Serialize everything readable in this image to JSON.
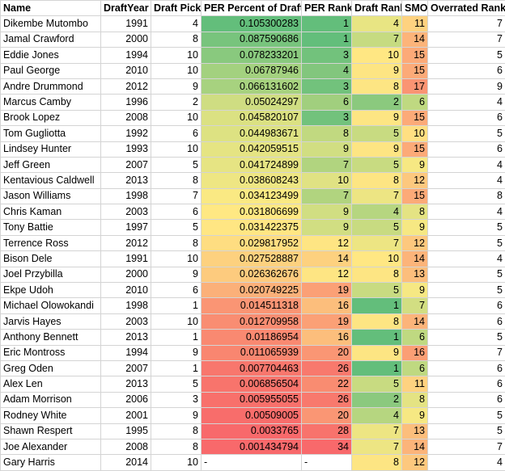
{
  "columns": [
    "Name",
    "DraftYear",
    "Draft Pick",
    "PER Percent of Draft",
    "PER Rank",
    "Draft Rank",
    "SMO",
    "Overrated Rank"
  ],
  "rows": [
    {
      "name": "Dikembe Mutombo",
      "year": "1991",
      "pick": "4",
      "per": "0.105300283",
      "per_rank": "1",
      "draft_rank": "4",
      "smo": "11",
      "over": "7",
      "per_color": "#63be7b",
      "per_rank_color": "#63be7b",
      "draft_rank_color": "#e8e583",
      "smo_color": "#fed280"
    },
    {
      "name": "Jamal Crawford",
      "year": "2000",
      "pick": "8",
      "per": "0.087590686",
      "per_rank": "1",
      "draft_rank": "7",
      "smo": "14",
      "over": "7",
      "per_color": "#78c47d",
      "per_rank_color": "#63be7b",
      "draft_rank_color": "#c6db81",
      "smo_color": "#fcb47a"
    },
    {
      "name": "Eddie Jones",
      "year": "1994",
      "pick": "10",
      "per": "0.078233201",
      "per_rank": "3",
      "draft_rank": "10",
      "smo": "15",
      "over": "5",
      "per_color": "#89c97e",
      "per_rank_color": "#72c27c",
      "draft_rank_color": "#ffe783",
      "smo_color": "#fcaa78"
    },
    {
      "name": "Paul George",
      "year": "2010",
      "pick": "10",
      "per": "0.06787946",
      "per_rank": "4",
      "draft_rank": "9",
      "smo": "15",
      "over": "6",
      "per_color": "#a3d17f",
      "per_rank_color": "#82c67d",
      "draft_rank_color": "#fde583",
      "smo_color": "#fcaa78"
    },
    {
      "name": "Andre Drummond",
      "year": "2012",
      "pick": "9",
      "per": "0.066131602",
      "per_rank": "3",
      "draft_rank": "8",
      "smo": "17",
      "over": "9",
      "per_color": "#a7d27f",
      "per_rank_color": "#72c27c",
      "draft_rank_color": "#fde583",
      "smo_color": "#fa9473"
    },
    {
      "name": "Marcus Camby",
      "year": "1996",
      "pick": "2",
      "per": "0.05024297",
      "per_rank": "6",
      "draft_rank": "2",
      "smo": "6",
      "over": "4",
      "per_color": "#cfdd82",
      "per_rank_color": "#a1cf7e",
      "draft_rank_color": "#8bc97e",
      "smo_color": "#bfd981"
    },
    {
      "name": "Brook Lopez",
      "year": "2008",
      "pick": "10",
      "per": "0.045820107",
      "per_rank": "3",
      "draft_rank": "9",
      "smo": "15",
      "over": "6",
      "per_color": "#dbe182",
      "per_rank_color": "#72c27c",
      "draft_rank_color": "#fde583",
      "smo_color": "#fcaa78"
    },
    {
      "name": "Tom Gugliotta",
      "year": "1992",
      "pick": "6",
      "per": "0.044983671",
      "per_rank": "8",
      "draft_rank": "5",
      "smo": "10",
      "over": "5",
      "per_color": "#dde282",
      "per_rank_color": "#c1d980",
      "draft_rank_color": "#c8db81",
      "smo_color": "#ffdf82"
    },
    {
      "name": "Lindsey Hunter",
      "year": "1993",
      "pick": "10",
      "per": "0.042059515",
      "per_rank": "9",
      "draft_rank": "9",
      "smo": "15",
      "over": "6",
      "per_color": "#e5e483",
      "per_rank_color": "#d1de82",
      "draft_rank_color": "#fde583",
      "smo_color": "#fcaa78"
    },
    {
      "name": "Jeff Green",
      "year": "2007",
      "pick": "5",
      "per": "0.041724899",
      "per_rank": "7",
      "draft_rank": "5",
      "smo": "9",
      "over": "4",
      "per_color": "#e6e483",
      "per_rank_color": "#b1d47f",
      "draft_rank_color": "#c8db81",
      "smo_color": "#f6e883"
    },
    {
      "name": "Kentavious Caldwell",
      "year": "2013",
      "pick": "8",
      "per": "0.038608243",
      "per_rank": "10",
      "draft_rank": "8",
      "smo": "12",
      "over": "4",
      "per_color": "#eee683",
      "per_rank_color": "#e0e283",
      "draft_rank_color": "#fde583",
      "smo_color": "#fdc87e"
    },
    {
      "name": "Jason Williams",
      "year": "1998",
      "pick": "7",
      "per": "0.034123499",
      "per_rank": "7",
      "draft_rank": "7",
      "smo": "15",
      "over": "8",
      "per_color": "#fae983",
      "per_rank_color": "#b1d47f",
      "draft_rank_color": "#ede583",
      "smo_color": "#fcaa78"
    },
    {
      "name": "Chris Kaman",
      "year": "2003",
      "pick": "6",
      "per": "0.031806699",
      "per_rank": "9",
      "draft_rank": "4",
      "smo": "8",
      "over": "4",
      "per_color": "#ffe883",
      "per_rank_color": "#d1de82",
      "draft_rank_color": "#b6d680",
      "smo_color": "#e4e383"
    },
    {
      "name": "Tony Battie",
      "year": "1997",
      "pick": "5",
      "per": "0.031422375",
      "per_rank": "9",
      "draft_rank": "5",
      "smo": "9",
      "over": "5",
      "per_color": "#ffe683",
      "per_rank_color": "#d1de82",
      "draft_rank_color": "#c8db81",
      "smo_color": "#f6e883"
    },
    {
      "name": "Terrence Ross",
      "year": "2012",
      "pick": "8",
      "per": "0.029817952",
      "per_rank": "12",
      "draft_rank": "7",
      "smo": "12",
      "over": "5",
      "per_color": "#fedd81",
      "per_rank_color": "#fee583",
      "draft_rank_color": "#ede583",
      "smo_color": "#fdc87e"
    },
    {
      "name": "Bison Dele",
      "year": "1991",
      "pick": "10",
      "per": "0.027528887",
      "per_rank": "14",
      "draft_rank": "10",
      "smo": "14",
      "over": "4",
      "per_color": "#fdd17f",
      "per_rank_color": "#fdd17f",
      "draft_rank_color": "#ffe783",
      "smo_color": "#fcb47a"
    },
    {
      "name": "Joel Przybilla",
      "year": "2000",
      "pick": "9",
      "per": "0.026362676",
      "per_rank": "12",
      "draft_rank": "8",
      "smo": "13",
      "over": "5",
      "per_color": "#fdcb7e",
      "per_rank_color": "#fee583",
      "draft_rank_color": "#fde583",
      "smo_color": "#fcbe7c"
    },
    {
      "name": "Ekpe Udoh",
      "year": "2010",
      "pick": "6",
      "per": "0.020749225",
      "per_rank": "19",
      "draft_rank": "5",
      "smo": "9",
      "over": "5",
      "per_color": "#fbb079",
      "per_rank_color": "#fba076",
      "draft_rank_color": "#c8db81",
      "smo_color": "#f6e883"
    },
    {
      "name": "Michael Olowokandi",
      "year": "1998",
      "pick": "1",
      "per": "0.014511318",
      "per_rank": "16",
      "draft_rank": "1",
      "smo": "7",
      "over": "6",
      "per_color": "#fa9574",
      "per_rank_color": "#fcbe7c",
      "draft_rank_color": "#63be7b",
      "smo_color": "#d2de82"
    },
    {
      "name": "Jarvis Hayes",
      "year": "2003",
      "pick": "10",
      "per": "0.012709958",
      "per_rank": "19",
      "draft_rank": "8",
      "smo": "14",
      "over": "6",
      "per_color": "#f98d72",
      "per_rank_color": "#fba076",
      "draft_rank_color": "#fde583",
      "smo_color": "#fcb47a"
    },
    {
      "name": "Anthony Bennett",
      "year": "2013",
      "pick": "1",
      "per": "0.01186954",
      "per_rank": "16",
      "draft_rank": "1",
      "smo": "6",
      "over": "5",
      "per_color": "#f98971",
      "per_rank_color": "#fcbe7c",
      "draft_rank_color": "#63be7b",
      "smo_color": "#bfd981"
    },
    {
      "name": "Eric Montross",
      "year": "1994",
      "pick": "9",
      "per": "0.011065939",
      "per_rank": "20",
      "draft_rank": "9",
      "smo": "16",
      "over": "7",
      "per_color": "#f98670",
      "per_rank_color": "#fa9674",
      "draft_rank_color": "#fde583",
      "smo_color": "#fb9f75"
    },
    {
      "name": "Greg Oden",
      "year": "2007",
      "pick": "1",
      "per": "0.007704463",
      "per_rank": "26",
      "draft_rank": "1",
      "smo": "6",
      "over": "6",
      "per_color": "#f8776d",
      "per_rank_color": "#f8796d",
      "draft_rank_color": "#63be7b",
      "smo_color": "#bfd981"
    },
    {
      "name": "Alex Len",
      "year": "2013",
      "pick": "5",
      "per": "0.006856504",
      "per_rank": "22",
      "draft_rank": "5",
      "smo": "11",
      "over": "6",
      "per_color": "#f8746c",
      "per_rank_color": "#f98c71",
      "draft_rank_color": "#c8db81",
      "smo_color": "#fed280"
    },
    {
      "name": "Adam Morrison",
      "year": "2006",
      "pick": "3",
      "per": "0.005955055",
      "per_rank": "26",
      "draft_rank": "2",
      "smo": "8",
      "over": "6",
      "per_color": "#f8706b",
      "per_rank_color": "#f8796d",
      "draft_rank_color": "#8bc97e",
      "smo_color": "#e4e383"
    },
    {
      "name": "Rodney White",
      "year": "2001",
      "pick": "9",
      "per": "0.00509005",
      "per_rank": "20",
      "draft_rank": "4",
      "smo": "9",
      "over": "5",
      "per_color": "#f86d6b",
      "per_rank_color": "#fa9674",
      "draft_rank_color": "#b6d680",
      "smo_color": "#f6e883"
    },
    {
      "name": "Shawn Respert",
      "year": "1995",
      "pick": "8",
      "per": "0.0033765",
      "per_rank": "28",
      "draft_rank": "7",
      "smo": "13",
      "over": "5",
      "per_color": "#f8696b",
      "per_rank_color": "#f8736c",
      "draft_rank_color": "#ede583",
      "smo_color": "#fcbe7c"
    },
    {
      "name": "Joe Alexander",
      "year": "2008",
      "pick": "8",
      "per": "0.001434794",
      "per_rank": "34",
      "draft_rank": "7",
      "smo": "14",
      "over": "7",
      "per_color": "#f8696b",
      "per_rank_color": "#f8696b",
      "draft_rank_color": "#ede583",
      "smo_color": "#fcb47a"
    },
    {
      "name": "Gary Harris",
      "year": "2014",
      "pick": "10",
      "per": "-",
      "per_rank": "-",
      "draft_rank": "8",
      "smo": "12",
      "over": "4",
      "per_color": "#ffffff",
      "per_rank_color": "#ffffff",
      "draft_rank_color": "#fde583",
      "smo_color": "#fdc87e"
    }
  ]
}
